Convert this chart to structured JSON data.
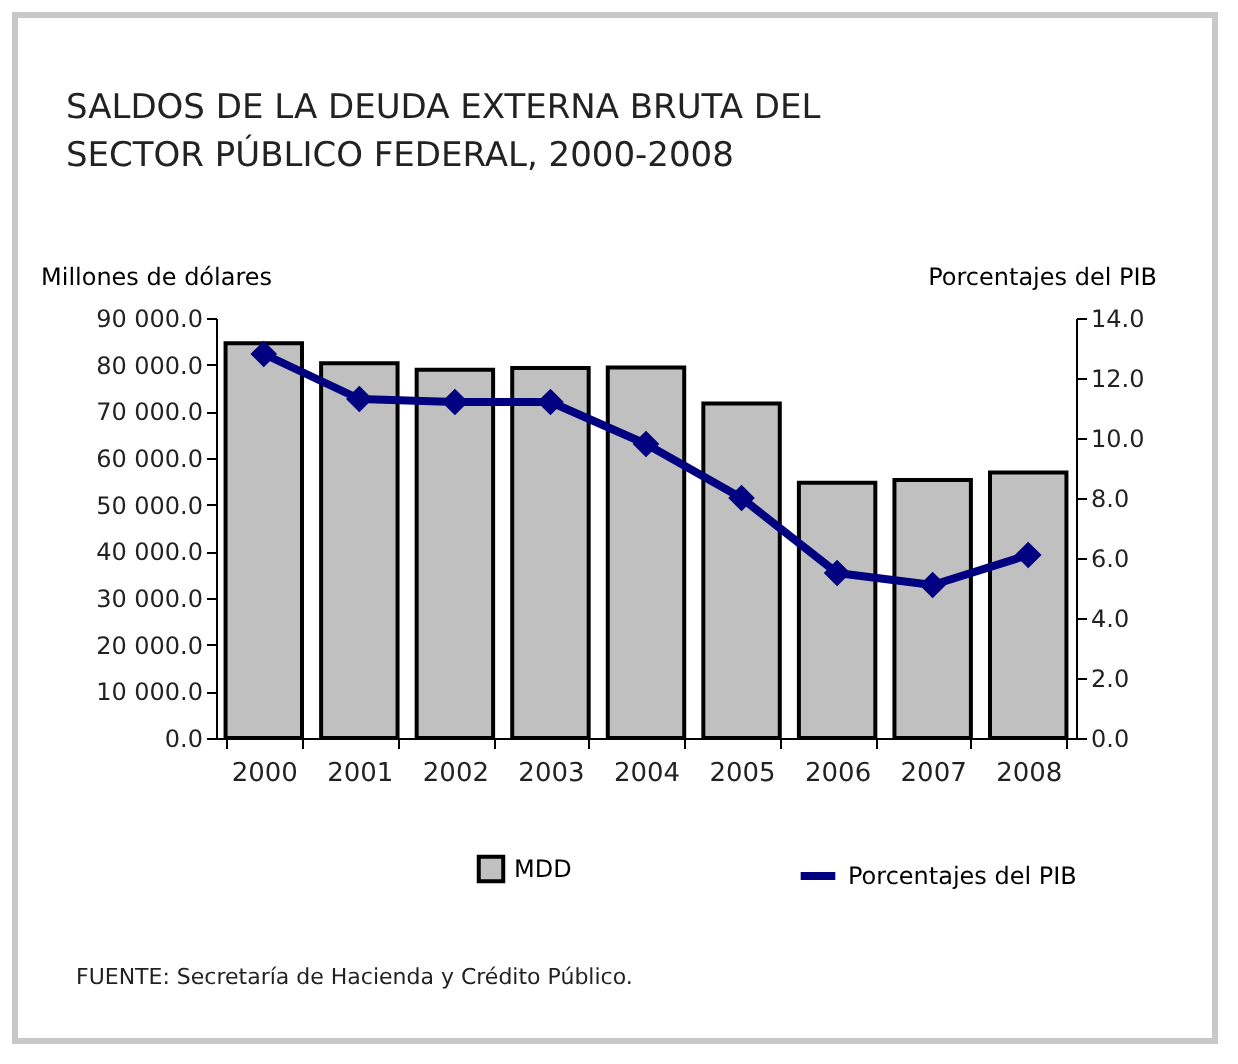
{
  "chart_data": {
    "type": "bar",
    "title": [
      "SALDOS DE LA DEUDA EXTERNA BRUTA  DEL",
      "SECTOR PÚBLICO FEDERAL, 2000-2008"
    ],
    "ylabel": "Millones de dólares",
    "y2label": "Porcentajes del PIB",
    "categories": [
      "2000",
      "2001",
      "2002",
      "2003",
      "2004",
      "2005",
      "2006",
      "2007",
      "2008"
    ],
    "series": [
      {
        "name": "MDD",
        "color": "#c0c0c0",
        "values": [
          84600,
          80300,
          78900,
          79300,
          79400,
          71700,
          54700,
          55300,
          56900
        ]
      },
      {
        "name": "Porcentajes del PIB",
        "type": "line",
        "axis": "y2",
        "color": "#000080",
        "values": [
          12.8,
          11.3,
          11.2,
          11.2,
          9.8,
          8.0,
          5.5,
          5.1,
          6.1
        ]
      }
    ],
    "ylim": [
      0,
      90000
    ],
    "yticks": [
      {
        "value": 0,
        "label": "0.0"
      },
      {
        "value": 10000,
        "label": "10 000.0"
      },
      {
        "value": 20000,
        "label": "20 000.0"
      },
      {
        "value": 30000,
        "label": "30 000.0"
      },
      {
        "value": 40000,
        "label": "40 000.0"
      },
      {
        "value": 50000,
        "label": "50 000.0"
      },
      {
        "value": 60000,
        "label": "60 000.0"
      },
      {
        "value": 70000,
        "label": "70 000.0"
      },
      {
        "value": 80000,
        "label": "80 000.0"
      },
      {
        "value": 90000,
        "label": "90 000.0"
      }
    ],
    "y2lim": [
      0,
      14
    ],
    "y2ticks": [
      {
        "value": 0,
        "label": "0.0"
      },
      {
        "value": 2,
        "label": "2.0"
      },
      {
        "value": 4,
        "label": "4.0"
      },
      {
        "value": 6,
        "label": "6.0"
      },
      {
        "value": 8,
        "label": "8.0"
      },
      {
        "value": 10,
        "label": "10.0"
      },
      {
        "value": 12,
        "label": "12.0"
      },
      {
        "value": 14,
        "label": "14.0"
      }
    ],
    "grid": false,
    "legend": "bottom",
    "marker": "diamond",
    "annotations": [
      "FUENTE: Secretaría de Hacienda y Crédito Público."
    ]
  }
}
